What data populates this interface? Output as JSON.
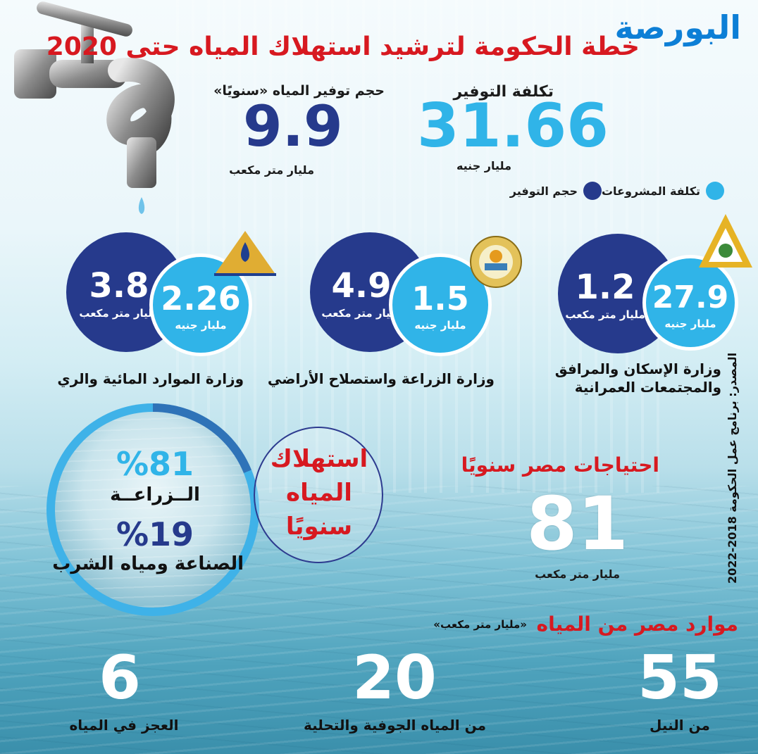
{
  "logo": "البورصة",
  "title": "خطة الحكومة لترشيد استهلاك المياه حتى 2020",
  "summary": {
    "savings_volume": {
      "label": "حجم توفير المياه «سنويًا»",
      "value": "9.9",
      "unit": "مليار متر مكعب"
    },
    "savings_cost": {
      "label": "تكلفة التوفير",
      "value": "31.66",
      "unit": "مليار جنيه"
    }
  },
  "legend": {
    "cost_label": "تكلفة المشروعات",
    "volume_label": "حجم التوفير",
    "cost_color": "#30b4e8",
    "volume_color": "#263a8c"
  },
  "ministries": [
    {
      "name": "وزارة الإسكان والمرافق",
      "name2": "والمجتمعات العمرانية",
      "volume": "1.2",
      "volume_unit": "مليار متر مكعب",
      "cost": "27.9",
      "cost_unit": "مليار جنيه"
    },
    {
      "name": "وزارة الزراعة واستصلاح الأراضي",
      "volume": "4.9",
      "volume_unit": "مليار متر مكعب",
      "cost": "1.5",
      "cost_unit": "مليار جنيه"
    },
    {
      "name": "وزارة الموارد المائية والري",
      "volume": "3.8",
      "volume_unit": "مليار متر مكعب",
      "cost": "2.26",
      "cost_unit": "مليار جنيه"
    }
  ],
  "consumption": {
    "title_lines": [
      "استهلاك",
      "المياه",
      "سنويًا"
    ],
    "agriculture_pct": "%81",
    "agriculture_label": "الــزراعــة",
    "industry_pct": "%19",
    "industry_label": "الصناعة ومياه الشرب"
  },
  "needs": {
    "label": "احتياجات مصر سنويًا",
    "value": "81",
    "unit": "مليار متر مكعب"
  },
  "resources": {
    "label": "موارد مصر من  المياه",
    "unit_note": "«مليار متر مكعب»",
    "items": [
      {
        "value": "55",
        "label": "من النيل"
      },
      {
        "value": "20",
        "label": "من المياه الجوفية والتحلية"
      },
      {
        "value": "6",
        "label": "العجز في المياه"
      }
    ]
  },
  "source": "المصدر: برنامج عمل الحكومة 2018-2022",
  "colors": {
    "title_red": "#d71920",
    "dark_blue": "#263a8c",
    "light_blue": "#30b4e8"
  }
}
